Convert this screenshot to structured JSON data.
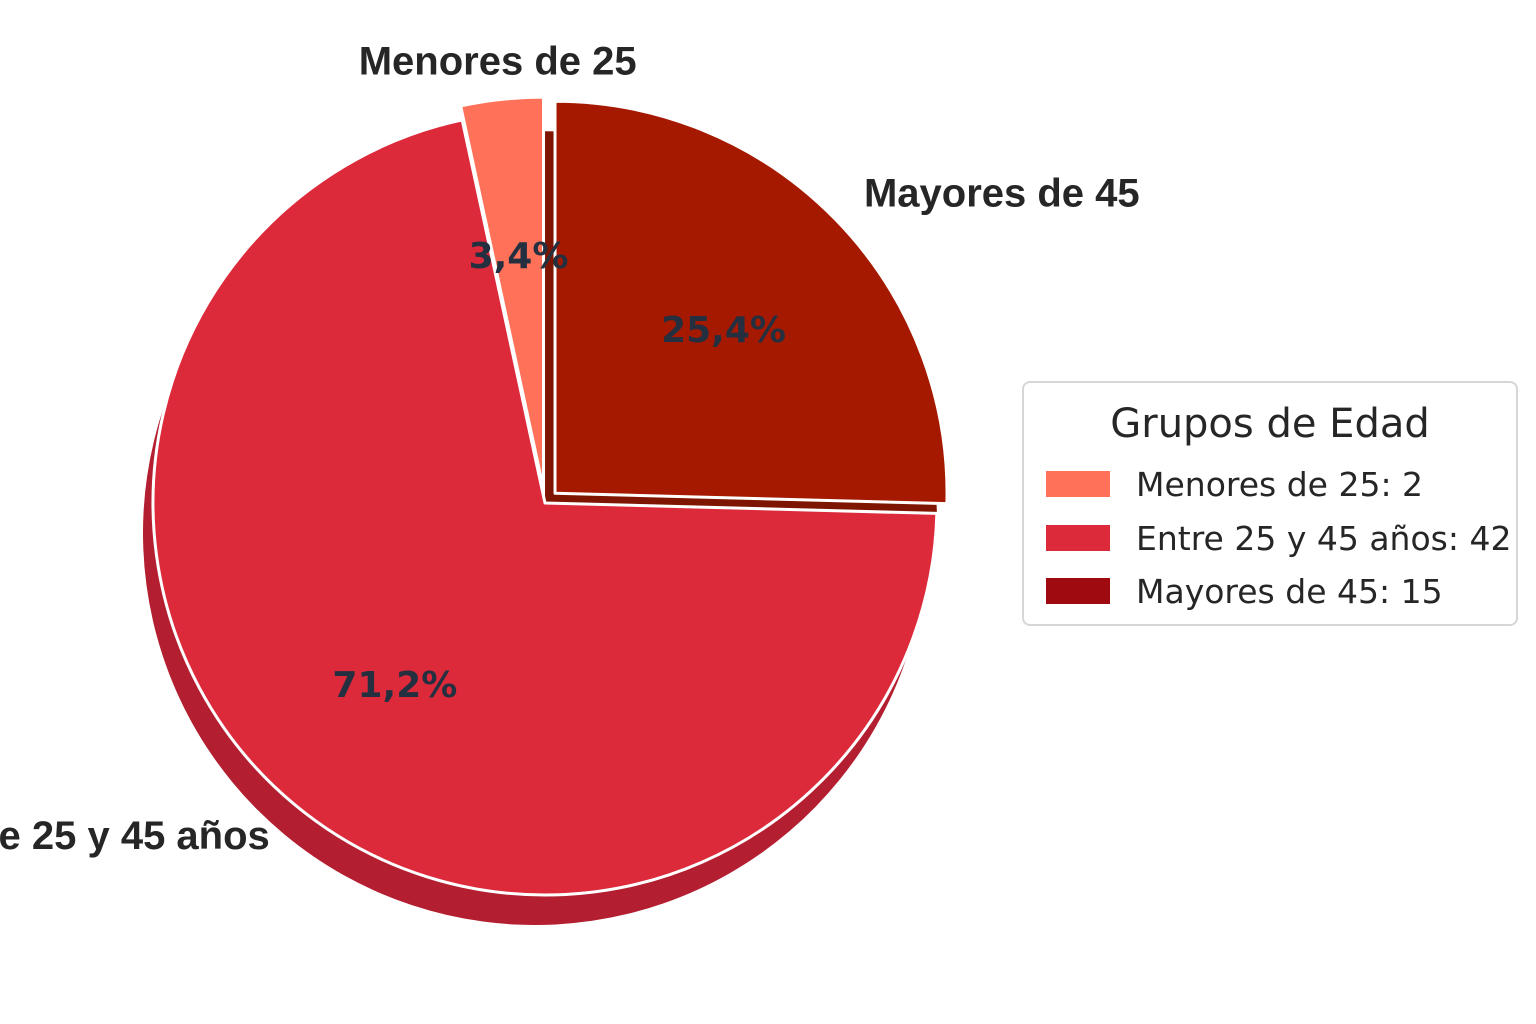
{
  "chart_data": {
    "type": "pie",
    "slices": [
      {
        "label": "Menores de 25",
        "value": 2,
        "pct_label": "3,4%",
        "color": "#ff7259",
        "shadow_color": "#d95c49"
      },
      {
        "label": "Entre 25 y 45 años",
        "value": 42,
        "pct_label": "71,2%",
        "color": "#dc2a3b",
        "shadow_color": "#b31e30"
      },
      {
        "label": "Mayores de 45",
        "value": 15,
        "pct_label": "25,4%",
        "color": "#a51900",
        "shadow_color": "#7e1500"
      }
    ],
    "legend": {
      "title": "Grupos de Edad",
      "placement": "right",
      "entries": [
        {
          "text": "Menores de 25: 2",
          "color": "#ff7259"
        },
        {
          "text": "Entre 25 y 45 años: 42",
          "color": "#dc2a3b"
        },
        {
          "text": "Mayores de 45: 15",
          "color": "#9f0a10"
        }
      ]
    },
    "shadow": true,
    "exploded": true
  }
}
